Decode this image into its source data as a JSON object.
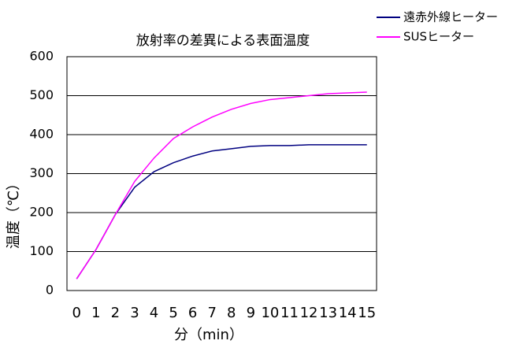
{
  "chart_data": {
    "type": "line",
    "title": "放射率の差異による表面温度",
    "x_label": "分（min）",
    "y_label": "温度（℃）",
    "categories": [
      "0",
      "1",
      "2",
      "3",
      "4",
      "5",
      "6",
      "7",
      "8",
      "9",
      "10",
      "11",
      "12",
      "13",
      "14",
      "15"
    ],
    "series": [
      {
        "name": "遠赤外線ヒーター",
        "color": "#000080",
        "values": [
          30,
          105,
          195,
          265,
          305,
          328,
          345,
          358,
          364,
          370,
          372,
          372,
          374,
          374,
          374,
          374
        ]
      },
      {
        "name": "SUSヒーター",
        "color": "#ff00ff",
        "values": [
          30,
          105,
          195,
          280,
          340,
          390,
          420,
          445,
          465,
          480,
          490,
          495,
          500,
          505,
          507,
          509
        ]
      }
    ],
    "ylim": [
      0,
      600
    ],
    "yticks": [
      0,
      100,
      200,
      300,
      400,
      500,
      600
    ],
    "grid": true
  }
}
